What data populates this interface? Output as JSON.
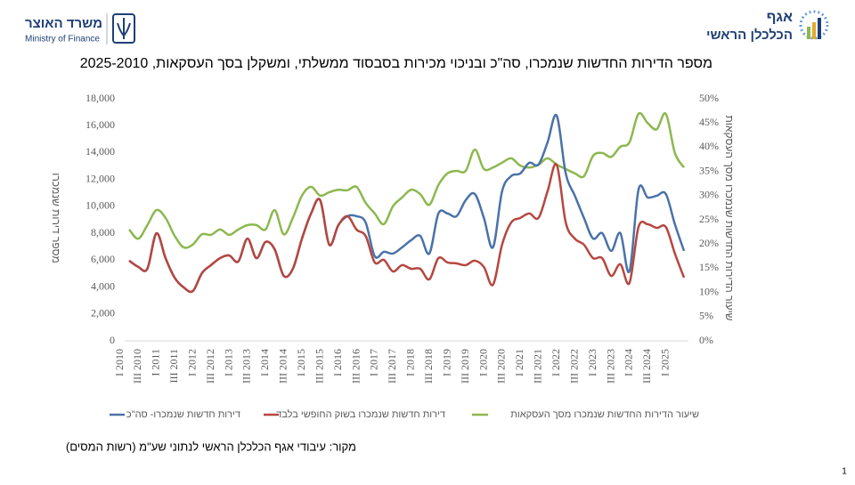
{
  "header": {
    "ministry_he": "משרד האוצר",
    "ministry_en": "Ministry of Finance",
    "dept_line1": "אגף",
    "dept_line2": "הכלכלן הראשי"
  },
  "chart_data": {
    "type": "line",
    "title": "מספר הדירות החדשות שנמכרו, סה\"כ ובניכוי מכירות בסבסוד ממשלתי, ומשקלן בסך העסקאות, 2025-2010",
    "ylabel": "מספר דירות שנמכרו",
    "y2label": "שיעור הדירות החדשות שנמכרו מסך העסקאות",
    "categories": [
      "I 2010",
      null,
      "III 2010",
      null,
      "I 2011",
      null,
      "III 2011",
      null,
      "I 2012",
      null,
      "III 2012",
      null,
      "I 2013",
      null,
      "III 2013",
      null,
      "I 2014",
      null,
      "III 2014",
      null,
      "I 2015",
      null,
      "III 2015",
      null,
      "I 2016",
      null,
      "III 2016",
      null,
      "I 2017",
      null,
      "III 2017",
      null,
      "I 2018",
      null,
      "III 2018",
      null,
      "I 2019",
      null,
      "III 2019",
      null,
      "I 2020",
      null,
      "III 2020",
      null,
      "I 2021",
      null,
      "III 2021",
      null,
      "I 2022",
      null,
      "III 2022",
      null,
      "I 2023",
      null,
      "III 2023",
      null,
      "I 2024",
      null,
      "III 2024",
      null,
      "I 2025",
      null
    ],
    "series": [
      {
        "name": "דירות חדשות שנמכרו- סה\"כ",
        "color": "#4a72a8",
        "values": [
          5960,
          5500,
          5360,
          8000,
          6150,
          4700,
          3970,
          3700,
          5030,
          5630,
          6150,
          6350,
          5900,
          7600,
          6150,
          7350,
          6800,
          4830,
          5360,
          7600,
          9470,
          10460,
          7150,
          8600,
          9270,
          9270,
          8800,
          6290,
          6620,
          6490,
          6950,
          7480,
          7810,
          6490,
          9470,
          9470,
          9270,
          10460,
          10920,
          9140,
          6950,
          11120,
          12250,
          12450,
          13240,
          13110,
          14760,
          16750,
          12450,
          10790,
          9140,
          7610,
          8010,
          6690,
          8010,
          5160,
          11250,
          10660,
          10790,
          10920,
          8670,
          6690
        ]
      },
      {
        "name": "דירות חדשות שנמכרו בשוק החופשי בלבד",
        "color": "#b5473f",
        "values": [
          5960,
          5500,
          5360,
          8000,
          6150,
          4700,
          3970,
          3700,
          5030,
          5630,
          6150,
          6350,
          5900,
          7600,
          6150,
          7350,
          6800,
          4830,
          5360,
          7600,
          9470,
          10460,
          7150,
          8600,
          9270,
          8270,
          7800,
          5830,
          6020,
          5160,
          5630,
          5360,
          5360,
          4570,
          6150,
          5830,
          5760,
          5630,
          5960,
          5490,
          4170,
          7150,
          8800,
          9140,
          9470,
          9140,
          11120,
          13100,
          8800,
          7600,
          7150,
          6150,
          6150,
          4830,
          5690,
          4300,
          8470,
          8670,
          8400,
          8470,
          6490,
          4700
        ]
      },
      {
        "name": "שיעור הדירות החדשות שנמכרו מסך העסקאות",
        "color": "#8cb84f",
        "axis": "y2",
        "values": [
          23,
          21.1,
          23.9,
          27,
          25.4,
          21.7,
          19.3,
          19.9,
          22,
          21.9,
          23,
          21.9,
          23,
          23.9,
          23.9,
          23,
          27,
          22,
          25.4,
          30,
          31.8,
          30,
          30.7,
          31.2,
          31.1,
          31.8,
          28.5,
          26.3,
          24.1,
          27.8,
          29.6,
          31.2,
          30.3,
          28.1,
          32.2,
          34.6,
          35.1,
          35.1,
          39.5,
          35.5,
          35.8,
          36.8,
          37.7,
          36.2,
          35.8,
          36.4,
          37.7,
          36.4,
          35.5,
          34.6,
          34,
          38.2,
          38.8,
          38,
          40.1,
          41,
          46.9,
          45,
          43.7,
          46.9,
          38.8,
          35.8
        ]
      }
    ],
    "ylim": [
      0,
      18000
    ],
    "yticks": [
      0,
      {
        "value": 2000,
        "label": "2,000"
      },
      {
        "value": 4000,
        "label": "4,000"
      },
      {
        "value": 6000,
        "label": "6,000"
      },
      {
        "value": 8000,
        "label": "8,000"
      },
      {
        "value": 10000,
        "label": "10,000"
      },
      {
        "value": 12000,
        "label": "12,000"
      },
      {
        "value": 14000,
        "label": "14,000"
      },
      {
        "value": 16000,
        "label": "16,000"
      },
      {
        "value": 18000,
        "label": "18,000"
      }
    ],
    "y2lim": [
      0,
      50
    ],
    "y2ticks": [
      {
        "value": 0,
        "label": "0%"
      },
      {
        "value": 5,
        "label": "5%"
      },
      {
        "value": 10,
        "label": "10%"
      },
      {
        "value": 15,
        "label": "15%"
      },
      {
        "value": 20,
        "label": "20%"
      },
      {
        "value": 25,
        "label": "25%"
      },
      {
        "value": 30,
        "label": "30%"
      },
      {
        "value": 35,
        "label": "35%"
      },
      {
        "value": 40,
        "label": "40%"
      },
      {
        "value": 45,
        "label": "45%"
      },
      {
        "value": 50,
        "label": "50%"
      }
    ],
    "grid": false,
    "legend": "bottom"
  },
  "footer": {
    "source": "מקור: עיבודי אגף הכלכלן הראשי לנתוני שע\"מ (רשות המסים)",
    "page": "1"
  }
}
